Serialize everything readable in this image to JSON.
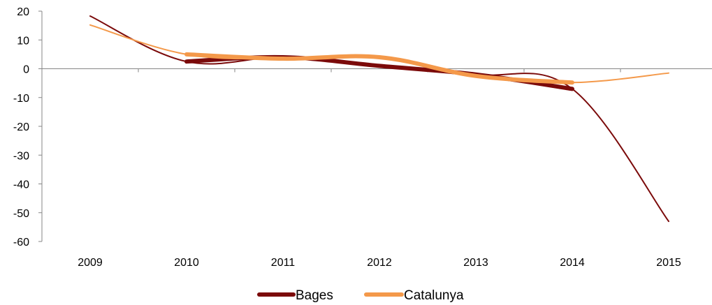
{
  "chart_data": {
    "type": "line",
    "title": "",
    "xlabel": "",
    "ylabel": "",
    "categories": [
      "2009",
      "2010",
      "2011",
      "2012",
      "2013",
      "2014",
      "2015"
    ],
    "ylim": [
      -60,
      20
    ],
    "yticks": [
      20,
      10,
      0,
      -10,
      -20,
      -30,
      -40,
      -50,
      -60
    ],
    "grid": false,
    "legend_position": "bottom",
    "series": [
      {
        "name": "Bages",
        "color": "#7b0a0a",
        "values": [
          18.3,
          2.5,
          4.0,
          1.0,
          -2.0,
          -7.0,
          -53.0
        ]
      },
      {
        "name": "Catalunya",
        "color": "#f4994a",
        "values": [
          15.2,
          5.0,
          3.5,
          4.0,
          -2.5,
          -4.8,
          -1.5
        ]
      }
    ]
  }
}
